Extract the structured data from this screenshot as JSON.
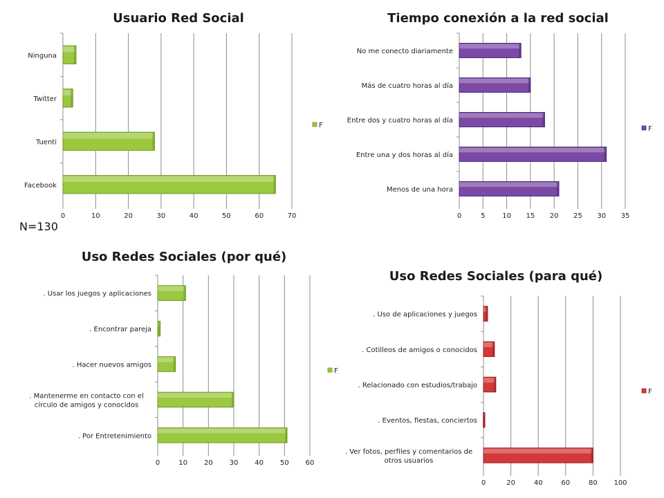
{
  "sample_label": "N=130",
  "colors": {
    "green": "#9bc83f",
    "green_dark": "#6e9a22",
    "purple": "#7a4aa6",
    "purple_dark": "#4f2b76",
    "red": "#d23a3a",
    "red_dark": "#9c1e1e"
  },
  "chart_data": [
    {
      "type": "bar",
      "orientation": "horizontal",
      "title": "Usuario Red Social",
      "categories": [
        "Facebook",
        "Tuenti",
        "Twitter",
        "Ninguna"
      ],
      "series": [
        {
          "name": "F",
          "values": [
            65,
            28,
            3,
            4
          ]
        }
      ],
      "xlim": [
        0,
        70
      ],
      "xticks": [
        0,
        10,
        20,
        30,
        40,
        50,
        60,
        70
      ],
      "grid": true,
      "legend": "right",
      "color": "green"
    },
    {
      "type": "bar",
      "orientation": "horizontal",
      "title": "Tiempo conexión a la red social",
      "categories": [
        "Menos de una hora",
        "Entre una y dos horas al día",
        "Entre dos y cuatro horas al día",
        "Más de cuatro horas al día",
        "No me conecto diariamente"
      ],
      "series": [
        {
          "name": "F",
          "values": [
            21,
            31,
            18,
            15,
            13
          ]
        }
      ],
      "xlim": [
        0,
        35
      ],
      "xticks": [
        0,
        5,
        10,
        15,
        20,
        25,
        30,
        35
      ],
      "grid": true,
      "legend": "right",
      "color": "purple"
    },
    {
      "type": "bar",
      "orientation": "horizontal",
      "title": "Uso Redes Sociales (por qué)",
      "categories": [
        ". Por Entretenimiento",
        ". Mantenerme en contacto con el círculo de amigos y conocidos",
        ". Hacer nuevos amigos",
        ". Encontrar pareja",
        ". Usar los juegos y aplicaciones"
      ],
      "series": [
        {
          "name": "F",
          "values": [
            51,
            30,
            7,
            1,
            11
          ]
        }
      ],
      "xlim": [
        0,
        60
      ],
      "xticks": [
        0,
        10,
        20,
        30,
        40,
        50,
        60
      ],
      "grid": true,
      "legend": "left",
      "color": "green"
    },
    {
      "type": "bar",
      "orientation": "horizontal",
      "title": "Uso Redes Sociales (para qué)",
      "categories": [
        ". Ver fotos, perfiles y comentarios de otros usuarios",
        ". Eventos, fiestas, conciertos",
        ". Relacionado con estudios/trabajo",
        ". Cotilleos de amigos o conocidos",
        ". Uso de aplicaciones y juegos"
      ],
      "series": [
        {
          "name": "F",
          "values": [
            80,
            1,
            9,
            8,
            3
          ]
        }
      ],
      "xlim": [
        0,
        100
      ],
      "xticks": [
        0,
        20,
        40,
        60,
        80,
        100
      ],
      "grid": true,
      "legend": "right",
      "color": "red"
    }
  ]
}
